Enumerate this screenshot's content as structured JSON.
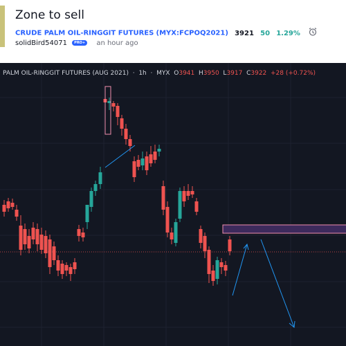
{
  "idea": {
    "title": "Zone to sell",
    "symbol_name": "CRUDE PALM OIL-RINGGIT FUTURES",
    "symbol_code": "(MYX:FCPOQ2021)",
    "price": "3921",
    "change": "50",
    "change_pct": "1.29%",
    "author": "solidBird54071",
    "badge": "PRO+",
    "time": "an hour ago"
  },
  "chart": {
    "instrument": "PALM OIL-RINGGIT FUTURES (AUG 2021)",
    "interval": "1h",
    "exchange": "MYX",
    "o_label": "O",
    "o_value": "3941",
    "h_label": "H",
    "h_value": "3950",
    "l_label": "L",
    "l_value": "3917",
    "c_label": "C",
    "c_value": "3922",
    "change": "+28 (+0.72%)"
  },
  "colors": {
    "up": "#26a69a",
    "down": "#ef5350",
    "bg": "#131722",
    "zone": "#f28fad",
    "arrow": "#2196f3",
    "accent": "#2962ff"
  },
  "icons": [
    "alarm-clock-icon"
  ]
}
